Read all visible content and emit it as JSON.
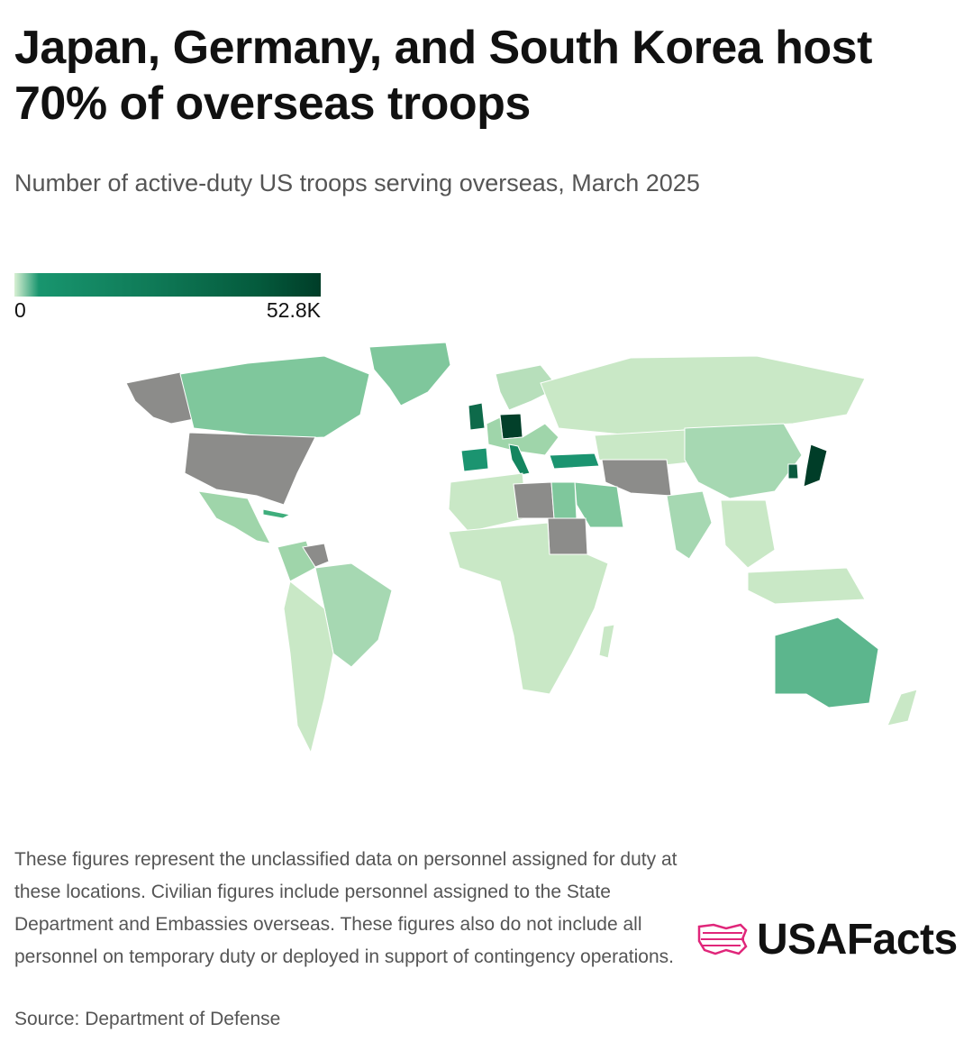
{
  "header": {
    "title": "Japan, Germany, and South Korea host 70% of overseas troops",
    "subtitle": "Number of active-duty US troops serving overseas, March 2025"
  },
  "legend": {
    "min_label": "0",
    "max_label": "52.8K",
    "colors": [
      "#d9f0d3",
      "#18956e",
      "#0f7a57",
      "#045a3c",
      "#003d28"
    ],
    "no_data_color": "#8c8c8a"
  },
  "footer": {
    "note": "These figures represent the unclassified data on personnel assigned for duty at these locations. Civilian figures include personnel assigned to the State Department and Embassies overseas. These figures also do not include all personnel on temporary duty or deployed in support of contingency operations.",
    "source": "Source: Department of Defense"
  },
  "brand": {
    "name": "USAFacts",
    "logo_icon": "usafacts-flag-map-icon",
    "logo_color": "#e0267a"
  }
}
